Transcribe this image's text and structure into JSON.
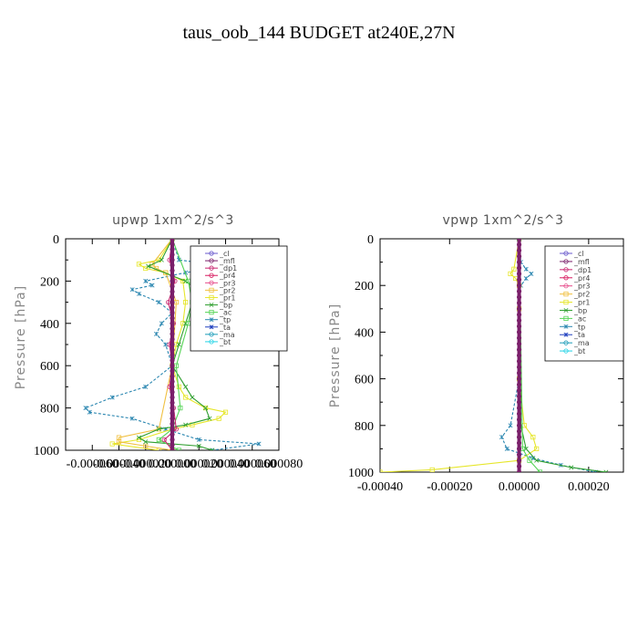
{
  "figure_title": "taus_oob_144  BUDGET at240E,27N",
  "legend_entries": [
    "_cl",
    "_mfl",
    "_dp1",
    "_pr4",
    "_pr3",
    "_pr2",
    "_pr1",
    "_bp",
    "_ac",
    "_tp",
    "_ta",
    "_ma",
    "_bt"
  ],
  "series_colors": {
    "_cl": "#6a5acd",
    "_mfl": "#7a1f6a",
    "_dp1": "#c8236e",
    "_pr4": "#d81b60",
    "_pr3": "#e64a8a",
    "_pr2": "#f0c040",
    "_pr1": "#e6e62a",
    "_bp": "#2e9e2e",
    "_ac": "#55d455",
    "_tp": "#2a86b0",
    "_ta": "#1f3fbf",
    "_ma": "#1a9bb8",
    "_bt": "#22d3e6"
  },
  "chart_data": [
    {
      "type": "line",
      "title": "upwp  1xm^2/s^3",
      "ylabel": "Pressure [hPa]",
      "xlabel": "",
      "y_inverted": true,
      "ylim": [
        0,
        1000
      ],
      "xlim": [
        -8e-05,
        8e-05
      ],
      "x_tick_labels": [
        "-0.000060",
        "-0.000040",
        "-0.000020",
        "0.000000",
        "0.000020",
        "0.000040",
        "0.000060",
        "0.000080"
      ],
      "x_tick_values": [
        -6e-05,
        -4e-05,
        -2e-05,
        0.0,
        2e-05,
        4e-05,
        6e-05,
        8e-05
      ],
      "y_tick_values": [
        0,
        200,
        400,
        600,
        800,
        1000
      ],
      "series": [
        {
          "name": "_tp",
          "y": [
            0,
            100,
            120,
            140,
            160,
            200,
            220,
            240,
            260,
            300,
            350,
            400,
            450,
            500,
            600,
            700,
            750,
            800,
            820,
            850,
            900,
            950,
            970,
            1000
          ],
          "x": [
            0.0,
            5e-06,
            3e-05,
            3e-05,
            1e-05,
            -2e-05,
            -1.5e-05,
            -3e-05,
            -2.5e-05,
            -1e-05,
            0.0,
            -8e-06,
            -1.2e-05,
            -5e-06,
            0.0,
            -2e-05,
            -4.5e-05,
            -6.5e-05,
            -6.2e-05,
            -3e-05,
            -5e-06,
            2e-05,
            6.5e-05,
            3e-05
          ]
        },
        {
          "name": "_pr1",
          "y": [
            0,
            100,
            120,
            140,
            160,
            200,
            300,
            400,
            500,
            600,
            700,
            750,
            800,
            820,
            850,
            880,
            900,
            950,
            970,
            1000
          ],
          "x": [
            0.0,
            -1e-05,
            -2.5e-05,
            -2e-05,
            -5e-06,
            8e-06,
            1e-05,
            8e-06,
            3e-06,
            0.0,
            5e-06,
            1e-05,
            2.5e-05,
            4e-05,
            3.5e-05,
            1.5e-05,
            0.0,
            -2.5e-05,
            -4.5e-05,
            -1e-05
          ]
        },
        {
          "name": "_pr2",
          "y": [
            0,
            120,
            140,
            160,
            300,
            600,
            900,
            940,
            960,
            980,
            1000
          ],
          "x": [
            0.0,
            -1.5e-05,
            -1.2e-05,
            -5e-06,
            3e-06,
            0.0,
            -1e-05,
            -4e-05,
            -4e-05,
            -2e-05,
            0.0
          ]
        },
        {
          "name": "_bp",
          "y": [
            0,
            100,
            130,
            200,
            250,
            300,
            400,
            500,
            600,
            700,
            750,
            800,
            850,
            880,
            900,
            940,
            960,
            980,
            1000
          ],
          "x": [
            0.0,
            -8e-06,
            -1.8e-05,
            1e-05,
            2e-05,
            1.5e-05,
            1e-05,
            5e-06,
            0.0,
            1e-05,
            1.5e-05,
            2.5e-05,
            2.8e-05,
            1e-05,
            -1e-05,
            -2.5e-05,
            -2e-05,
            2e-05,
            3e-05
          ]
        },
        {
          "name": "_ac",
          "y": [
            0,
            200,
            300,
            400,
            600,
            800,
            900,
            950,
            1000
          ],
          "x": [
            0.0,
            1.2e-05,
            1.5e-05,
            1.2e-05,
            3e-06,
            6e-06,
            0.0,
            -1e-05,
            5e-06
          ]
        },
        {
          "name": "_dp1",
          "y": [
            0,
            100,
            200,
            300,
            400,
            500,
            600,
            700,
            800,
            900,
            950,
            1000
          ],
          "x": [
            0.0,
            -2e-06,
            2e-06,
            -3e-06,
            1e-06,
            -2e-06,
            0.0,
            -2e-06,
            1e-06,
            3e-06,
            -6e-06,
            0.0
          ]
        },
        {
          "name": "_mfl",
          "y": [
            0,
            1000
          ],
          "x": [
            0.0,
            0.0
          ]
        }
      ]
    },
    {
      "type": "line",
      "title": "vpwp  1xm^2/s^3",
      "ylabel": "Pressure [hPa]",
      "xlabel": "",
      "y_inverted": true,
      "ylim": [
        0,
        1000
      ],
      "xlim": [
        -0.0004,
        0.0003
      ],
      "x_tick_labels": [
        "-0.00040",
        "-0.00020",
        "0.00000",
        "0.00020"
      ],
      "x_tick_values": [
        -0.0004,
        -0.0002,
        0.0,
        0.0002
      ],
      "y_tick_values": [
        0,
        200,
        400,
        600,
        800,
        1000
      ],
      "series": [
        {
          "name": "_tp",
          "y": [
            0,
            100,
            130,
            150,
            170,
            200,
            300,
            600,
            800,
            850,
            900,
            940,
            970,
            1000
          ],
          "x": [
            0.0,
            5e-06,
            2e-05,
            3.5e-05,
            2e-05,
            5e-06,
            0.0,
            0.0,
            -2.5e-05,
            -5e-05,
            -3.5e-05,
            4e-05,
            0.00012,
            0.00022
          ]
        },
        {
          "name": "_pr1",
          "y": [
            0,
            130,
            150,
            170,
            200,
            300,
            600,
            800,
            850,
            900,
            950,
            990,
            1000
          ],
          "x": [
            0.0,
            -1.5e-05,
            -2.5e-05,
            -1e-05,
            0.0,
            0.0,
            0.0,
            1.5e-05,
            4e-05,
            5e-05,
            0.0,
            -0.00025,
            -0.0004
          ]
        },
        {
          "name": "_bp",
          "y": [
            0,
            800,
            900,
            950,
            980,
            1000
          ],
          "x": [
            0.0,
            5e-06,
            2e-05,
            5e-05,
            0.00015,
            0.00025
          ]
        },
        {
          "name": "_ac",
          "y": [
            0,
            900,
            950,
            1000
          ],
          "x": [
            0.0,
            1e-05,
            3e-05,
            6e-05
          ]
        },
        {
          "name": "_mfl",
          "y": [
            0,
            1000
          ],
          "x": [
            0.0,
            0.0
          ]
        }
      ]
    }
  ]
}
